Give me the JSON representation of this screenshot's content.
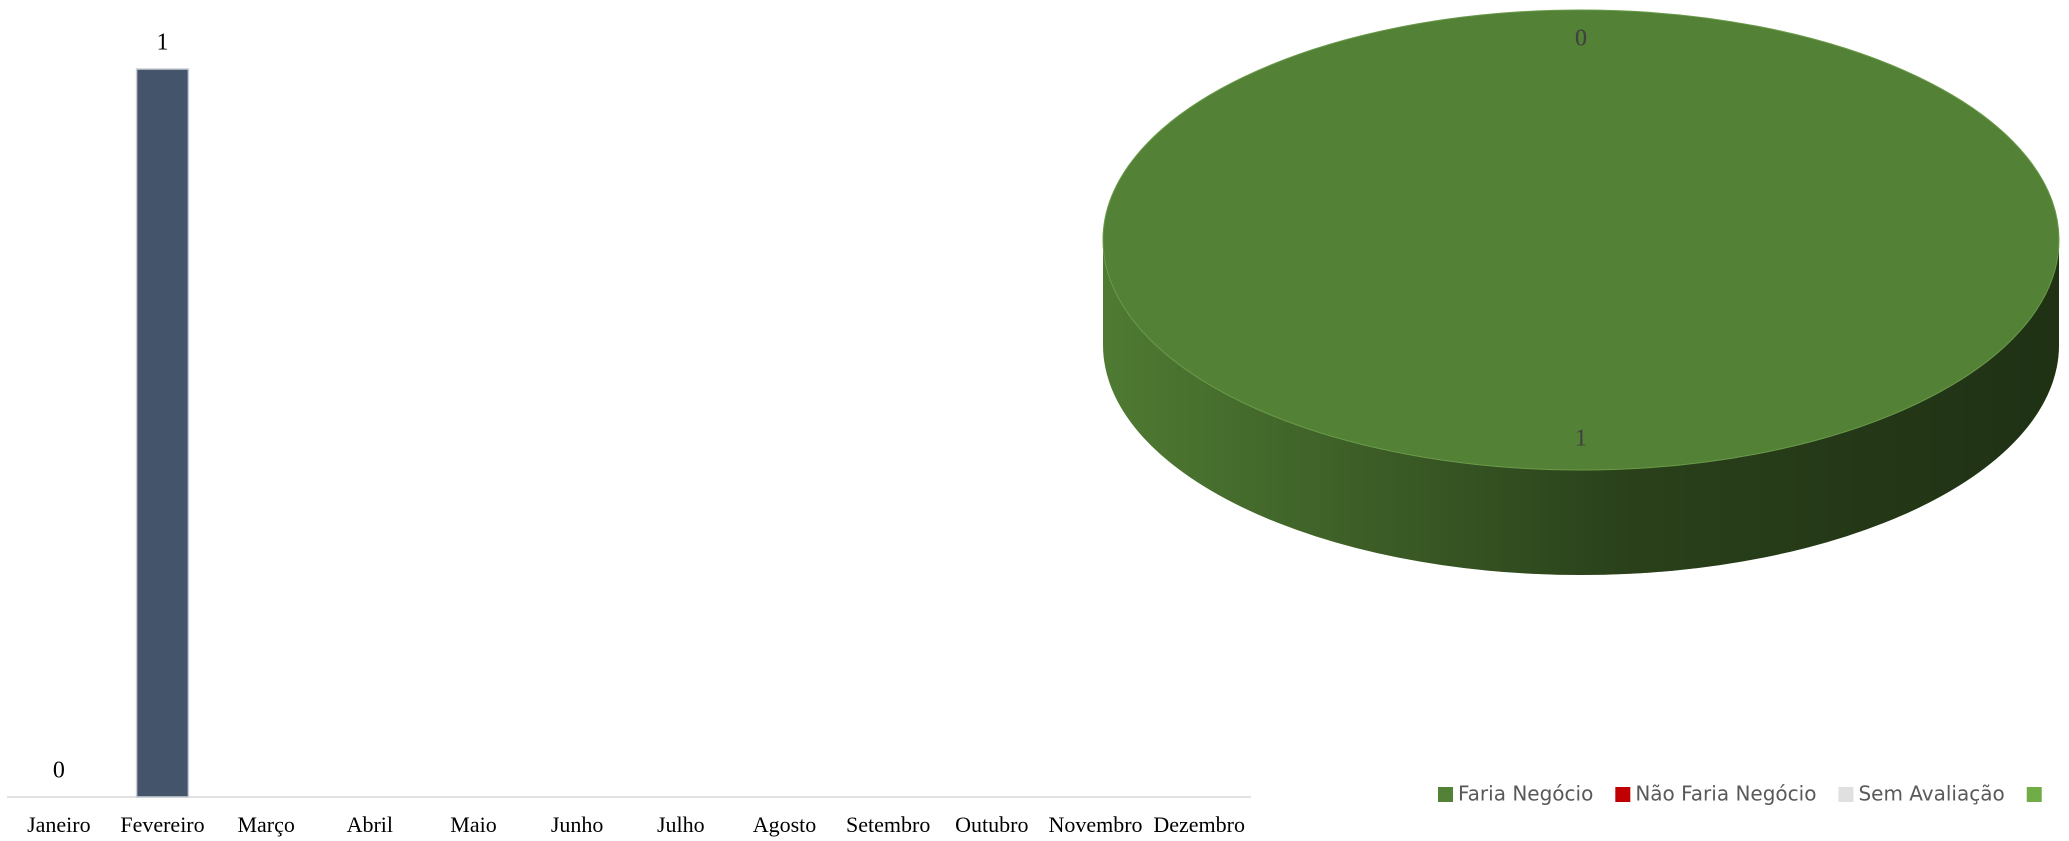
{
  "chart_data": [
    {
      "type": "bar",
      "categories": [
        "Janeiro",
        "Fevereiro",
        "Março",
        "Abril",
        "Maio",
        "Junho",
        "Julho",
        "Agosto",
        "Setembro",
        "Outubro",
        "Novembro",
        "Dezembro"
      ],
      "values": [
        0,
        1,
        null,
        null,
        null,
        null,
        null,
        null,
        null,
        null,
        null,
        null
      ],
      "color": "#44546a",
      "ylim": [
        0,
        1
      ]
    },
    {
      "type": "pie",
      "categories": [
        "Faria Negócio",
        "Não Faria Negócio",
        "Sem Avaliação",
        null
      ],
      "values": [
        1,
        0,
        0,
        null
      ],
      "colors": [
        "#538135",
        "#c00000",
        "#e0e0e0",
        "#70ad47"
      ],
      "legend": "bottom-right"
    }
  ]
}
